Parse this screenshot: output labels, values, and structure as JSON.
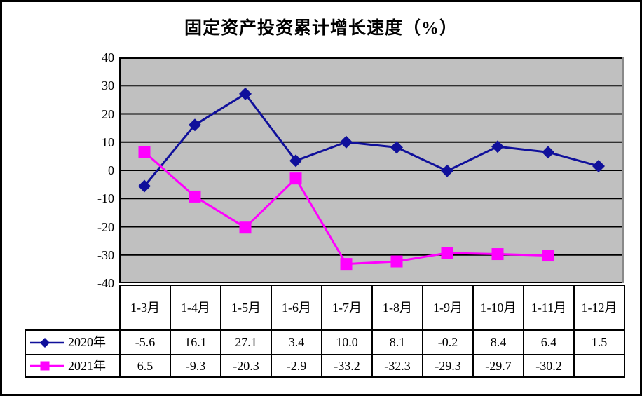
{
  "title": "固定资产投资累计增长速度（%）",
  "colors": {
    "plot_background": "#c0c0c0",
    "gridline": "#000000",
    "axis": "#000000",
    "plot_edge_shadow": "#8a8a8a",
    "table_border": "#000000",
    "series_2020": "#10109b",
    "series_2021": "#ff00ff"
  },
  "chart_data": {
    "type": "line",
    "title": "固定资产投资累计增长速度（%）",
    "categories": [
      "1-3月",
      "1-4月",
      "1-5月",
      "1-6月",
      "1-7月",
      "1-8月",
      "1-9月",
      "1-10月",
      "1-11月",
      "1-12月"
    ],
    "series": [
      {
        "name": "2020年",
        "marker": "diamond",
        "color": "#10109b",
        "values": [
          -5.6,
          16.1,
          27.1,
          3.4,
          10.0,
          8.1,
          -0.2,
          8.4,
          6.4,
          1.5
        ]
      },
      {
        "name": "2021年",
        "marker": "square",
        "color": "#ff00ff",
        "values": [
          6.5,
          -9.3,
          -20.3,
          -2.9,
          -33.2,
          -32.3,
          -29.3,
          -29.7,
          -30.2
        ]
      }
    ],
    "xlabel": "",
    "ylabel": "",
    "ylim": [
      -40,
      40
    ],
    "yticks": [
      40,
      30,
      20,
      10,
      0,
      -10,
      -20,
      -30,
      -40
    ],
    "grid": true,
    "legend_position": "table-left",
    "table_shown": true
  }
}
